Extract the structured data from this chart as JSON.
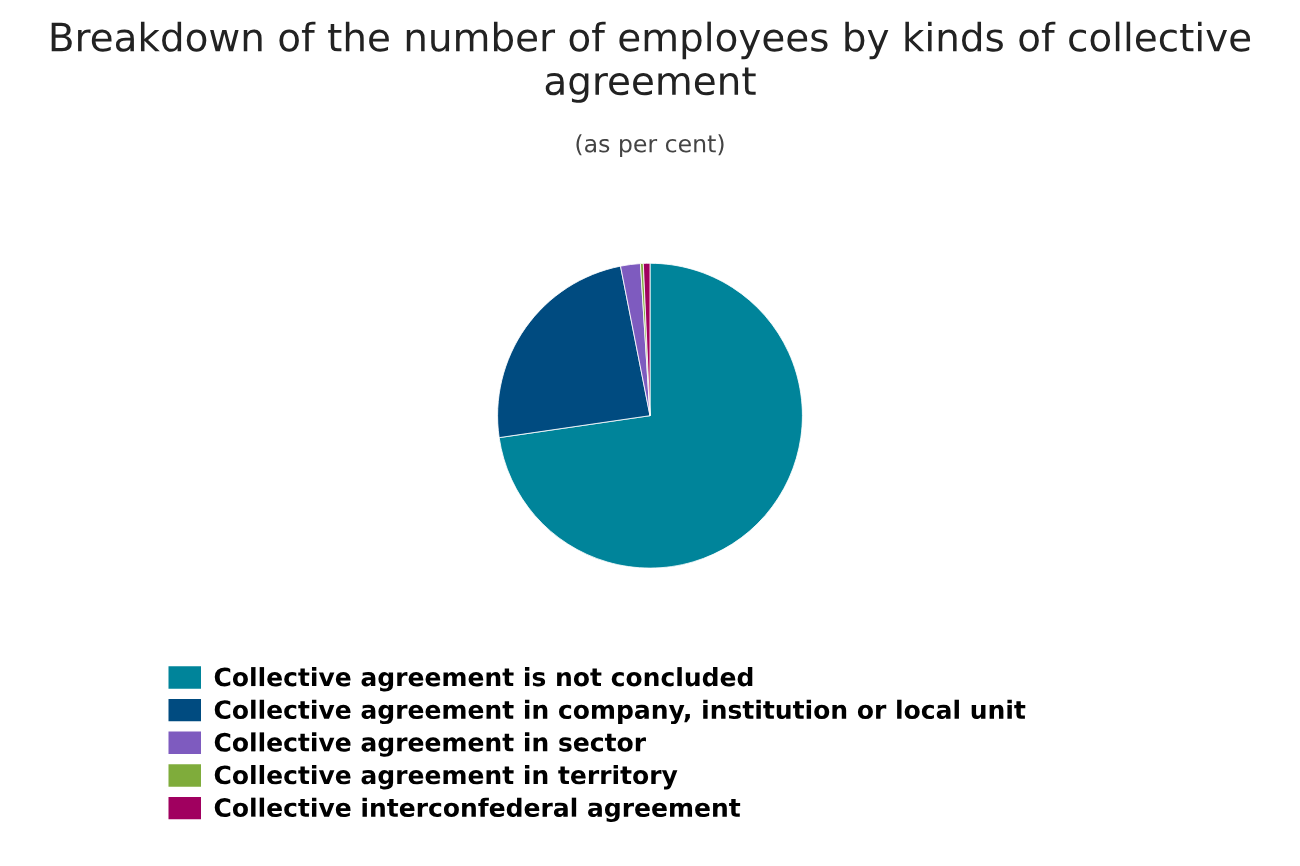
{
  "chart_data": {
    "type": "pie",
    "title": "Breakdown of the number of employees by kinds of collective agreement",
    "subtitle": "(as per cent)",
    "categories": [
      "Collective agreement is not concluded",
      "Collective agreement in company, institution or local unit",
      "Collective agreement in sector",
      "Collective agreement in territory",
      "Collective interconfederal agreement"
    ],
    "values": [
      72.7,
      24.2,
      2.1,
      0.3,
      0.7
    ],
    "colors": [
      "#00849a",
      "#004b80",
      "#7e5bbf",
      "#7fac3b",
      "#a0005f"
    ],
    "legend": "bottom"
  }
}
